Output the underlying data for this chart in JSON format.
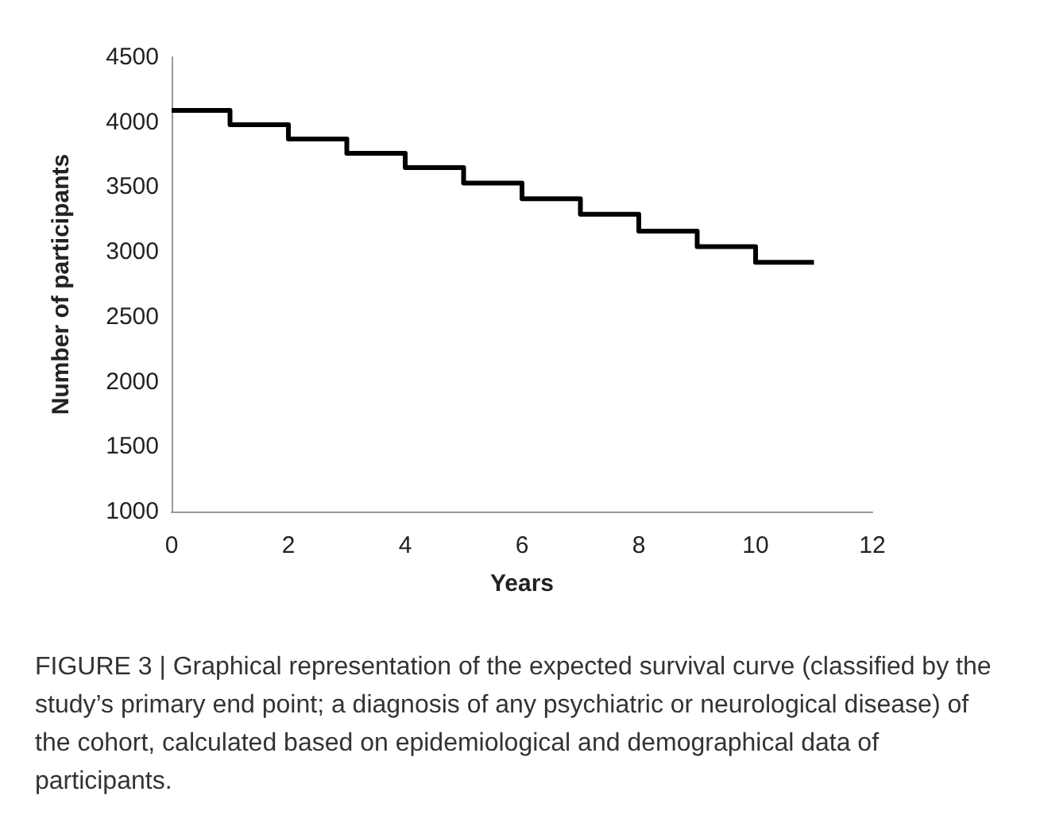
{
  "chart_data": {
    "type": "step",
    "xlabel": "Years",
    "ylabel": "Number of participants",
    "x": [
      0,
      1,
      2,
      3,
      4,
      5,
      6,
      7,
      8,
      9,
      10,
      11
    ],
    "series": [
      {
        "color": "#000000",
        "values": [
          4090,
          3980,
          3870,
          3760,
          3650,
          3530,
          3410,
          3290,
          3160,
          3040,
          2920,
          2920
        ]
      }
    ],
    "xlim": [
      0,
      12
    ],
    "xticks": [
      0,
      2,
      4,
      6,
      8,
      10,
      12
    ],
    "ylim": [
      1000,
      4500
    ],
    "yticks": [
      1000,
      1500,
      2000,
      2500,
      3000,
      3500,
      4000,
      4500
    ],
    "grid": false,
    "marker": "none",
    "line_style": "solid",
    "annotations": [
      "FIGURE 3 | Graphical representation of the expected survival curve (classified by the study’s primary end point; a diagnosis of any psychiatric or neurological disease) of the cohort, calculated based on epidemiological and demographical data of participants."
    ]
  }
}
